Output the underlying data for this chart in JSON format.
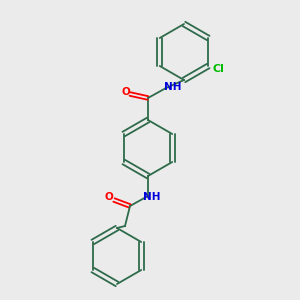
{
  "bg_color": "#ebebeb",
  "bond_color": "#2d6b4a",
  "atom_colors": {
    "O": "#ff0000",
    "N": "#0000dd",
    "Cl": "#00bb00",
    "C": "#2d6b4a",
    "H": "#2d6b4a"
  },
  "font_size_atoms": 7.5,
  "font_size_cl": 7.5,
  "line_width": 1.3
}
